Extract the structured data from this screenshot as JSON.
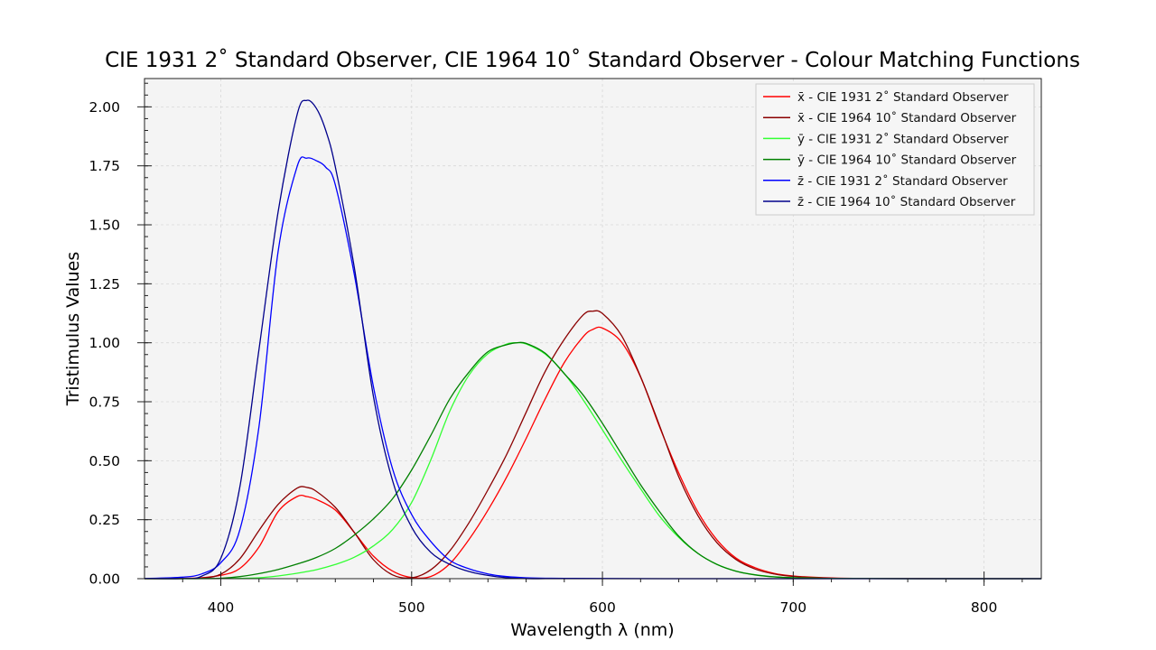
{
  "chart_data": {
    "type": "line",
    "title": "CIE 1931 2˚ Standard Observer, CIE 1964 10˚ Standard Observer - Colour Matching Functions",
    "xlabel": "Wavelength λ (nm)",
    "ylabel": "Tristimulus Values",
    "xlim": [
      360,
      830
    ],
    "ylim": [
      0,
      2.12
    ],
    "x_ticks": [
      400,
      500,
      600,
      700,
      800
    ],
    "y_ticks": [
      0.0,
      0.25,
      0.5,
      0.75,
      1.0,
      1.25,
      1.5,
      1.75,
      2.0
    ],
    "y_tick_labels": [
      "0.00",
      "0.25",
      "0.50",
      "0.75",
      "1.00",
      "1.25",
      "1.50",
      "1.75",
      "2.00"
    ],
    "grid": true,
    "legend_position": "top-right",
    "background": "#f4f4f4",
    "series": [
      {
        "name": "x̄ - CIE 1931 2˚ Standard Observer",
        "color": "#ff0000",
        "x": [
          360,
          380,
          390,
          400,
          410,
          420,
          430,
          440,
          445,
          450,
          460,
          470,
          480,
          490,
          500,
          510,
          520,
          530,
          540,
          550,
          560,
          570,
          580,
          590,
          595,
          600,
          610,
          620,
          630,
          640,
          650,
          660,
          670,
          680,
          690,
          700,
          720,
          740,
          760,
          780,
          800,
          830
        ],
        "y": [
          0.0001,
          0.0014,
          0.0042,
          0.0143,
          0.0435,
          0.1344,
          0.2839,
          0.3483,
          0.3481,
          0.3362,
          0.2908,
          0.1954,
          0.0956,
          0.032,
          0.0049,
          0.0093,
          0.0633,
          0.1655,
          0.2904,
          0.4334,
          0.5945,
          0.7621,
          0.9163,
          1.0263,
          1.0567,
          1.0622,
          1.0026,
          0.8544,
          0.6424,
          0.4479,
          0.2835,
          0.1649,
          0.0874,
          0.0468,
          0.0227,
          0.0114,
          0.0029,
          0.0007,
          0.0002,
          4e-05,
          1e-05,
          0.0
        ]
      },
      {
        "name": "x̄ - CIE 1964 10˚ Standard Observer",
        "color": "#8b0000",
        "x": [
          360,
          380,
          390,
          400,
          410,
          420,
          430,
          440,
          445,
          450,
          460,
          470,
          480,
          490,
          500,
          510,
          520,
          530,
          540,
          550,
          560,
          570,
          580,
          590,
          595,
          600,
          610,
          620,
          630,
          640,
          650,
          660,
          670,
          680,
          690,
          700,
          720,
          740,
          760,
          780,
          800,
          830
        ],
        "y": [
          0.0,
          0.0002,
          0.0024,
          0.0191,
          0.0847,
          0.2045,
          0.3147,
          0.3837,
          0.3867,
          0.3707,
          0.3023,
          0.1956,
          0.0805,
          0.0162,
          0.0038,
          0.0375,
          0.1177,
          0.2365,
          0.3768,
          0.5298,
          0.7052,
          0.8787,
          1.0142,
          1.1185,
          1.134,
          1.124,
          1.0305,
          0.8563,
          0.6475,
          0.4316,
          0.2683,
          0.1526,
          0.0813,
          0.0409,
          0.0199,
          0.0096,
          0.0022,
          0.0005,
          0.0001,
          3e-05,
          1e-05,
          0.0
        ]
      },
      {
        "name": "ȳ - CIE 1931 2˚ Standard Observer",
        "color": "#33ff33",
        "x": [
          360,
          380,
          390,
          400,
          410,
          420,
          430,
          440,
          450,
          460,
          470,
          480,
          490,
          500,
          510,
          520,
          530,
          540,
          550,
          555,
          560,
          570,
          580,
          590,
          600,
          610,
          620,
          630,
          640,
          650,
          660,
          670,
          680,
          690,
          700,
          720,
          740,
          760,
          780,
          800,
          830
        ],
        "y": [
          0.0,
          0.0,
          0.0001,
          0.0004,
          0.0012,
          0.004,
          0.0116,
          0.023,
          0.038,
          0.06,
          0.091,
          0.139,
          0.208,
          0.323,
          0.503,
          0.71,
          0.862,
          0.954,
          0.995,
          1.0,
          0.995,
          0.952,
          0.87,
          0.757,
          0.631,
          0.503,
          0.381,
          0.265,
          0.175,
          0.107,
          0.061,
          0.032,
          0.017,
          0.0082,
          0.0041,
          0.001,
          0.00025,
          6e-05,
          1.5e-05,
          4e-06,
          0.0
        ]
      },
      {
        "name": "ȳ - CIE 1964 10˚ Standard Observer",
        "color": "#008000",
        "x": [
          360,
          380,
          390,
          400,
          410,
          420,
          430,
          440,
          450,
          460,
          470,
          480,
          490,
          500,
          510,
          520,
          530,
          540,
          550,
          555,
          560,
          570,
          580,
          590,
          600,
          610,
          620,
          630,
          640,
          650,
          660,
          670,
          680,
          690,
          700,
          720,
          740,
          760,
          780,
          800,
          830
        ],
        "y": [
          0.0,
          0.0,
          0.0003,
          0.002,
          0.0088,
          0.0214,
          0.0387,
          0.0621,
          0.0895,
          0.1282,
          0.1852,
          0.2536,
          0.3391,
          0.4608,
          0.6067,
          0.7618,
          0.8752,
          0.962,
          0.9918,
          1.0,
          0.9973,
          0.9556,
          0.8689,
          0.7774,
          0.6583,
          0.528,
          0.3981,
          0.2835,
          0.1798,
          0.1076,
          0.0603,
          0.0318,
          0.0159,
          0.0077,
          0.0037,
          0.0008,
          0.0002,
          5e-05,
          1e-05,
          3e-06,
          0.0
        ]
      },
      {
        "name": "z̄ - CIE 1931 2˚ Standard Observer",
        "color": "#0000ff",
        "x": [
          360,
          380,
          390,
          400,
          410,
          420,
          430,
          440,
          445,
          450,
          455,
          460,
          470,
          480,
          490,
          500,
          510,
          520,
          530,
          540,
          550,
          560,
          570,
          580,
          600,
          650,
          700,
          830
        ],
        "y": [
          0.0006,
          0.0065,
          0.0201,
          0.0679,
          0.2074,
          0.6456,
          1.3856,
          1.7471,
          1.7826,
          1.7721,
          1.744,
          1.6692,
          1.2876,
          0.813,
          0.4652,
          0.272,
          0.1582,
          0.0782,
          0.0422,
          0.0203,
          0.0087,
          0.0039,
          0.0021,
          0.0017,
          0.0008,
          0.0,
          0.0,
          0.0
        ]
      },
      {
        "name": "z̄ - CIE 1964 10˚ Standard Observer",
        "color": "#00008b",
        "x": [
          360,
          380,
          390,
          400,
          410,
          420,
          430,
          440,
          445,
          450,
          455,
          460,
          470,
          480,
          490,
          500,
          510,
          520,
          530,
          540,
          550,
          560,
          570,
          580,
          600,
          650,
          700,
          830
        ],
        "y": [
          0.0,
          0.0007,
          0.0106,
          0.086,
          0.3894,
          0.9725,
          1.5535,
          1.9673,
          2.0273,
          1.9948,
          1.8998,
          1.7454,
          1.3176,
          0.7721,
          0.4153,
          0.2185,
          0.112,
          0.0607,
          0.0305,
          0.0137,
          0.004,
          0.0,
          0.0,
          0.0,
          0.0,
          0.0,
          0.0,
          0.0
        ]
      }
    ]
  }
}
